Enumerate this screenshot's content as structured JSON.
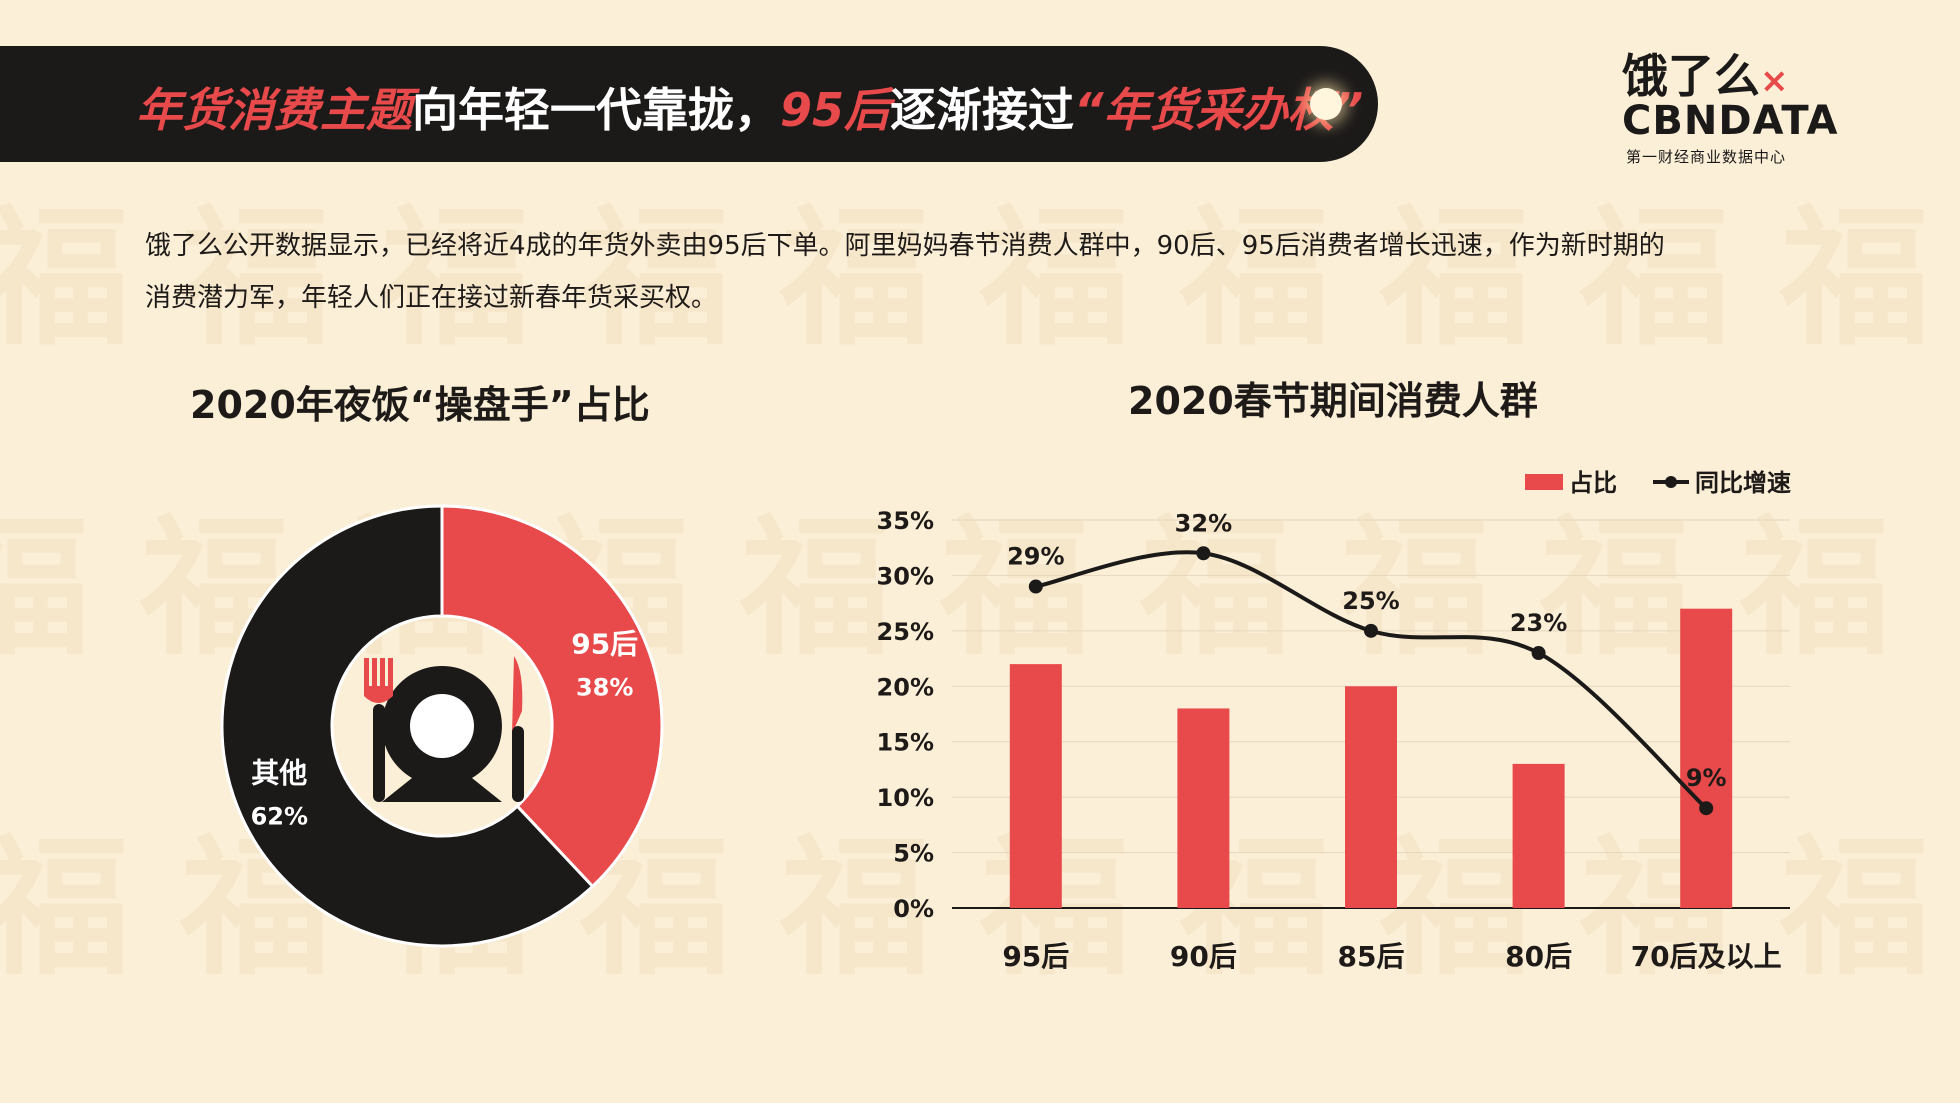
{
  "header": {
    "title_parts": [
      {
        "text": "年货消费主题",
        "highlight": true
      },
      {
        "text": "向年轻一代靠拢，",
        "highlight": false
      },
      {
        "text": "95后",
        "highlight": true
      },
      {
        "text": "逐渐接过",
        "highlight": false
      },
      {
        "text": "“年货采办权”",
        "highlight": true
      }
    ]
  },
  "logo": {
    "brand": "饿了么",
    "brand_mark": "×",
    "partner": "CBNDATA",
    "partner_sub": "第一财经商业数据中心"
  },
  "description": {
    "line1": "饿了么公开数据显示，已经将近4成的年货外卖由95后下单。阿里妈妈春节消费人群中，90后、95后消费者增长迅速，作为新时期的",
    "line2": "消费潜力军，年轻人们正在接过新春年货采买权。"
  },
  "colors": {
    "accent_red": "#e8494a",
    "dark": "#1c1a19",
    "background": "#fbefd8"
  },
  "icons": {
    "center_icon": "plate-fork-knife-icon"
  },
  "chart_data": [
    {
      "type": "pie",
      "variant": "donut",
      "title": "2020年夜饭“操盘手”占比",
      "slices": [
        {
          "label": "95后",
          "value": 38,
          "display": "38%",
          "color": "#e8494a"
        },
        {
          "label": "其他",
          "value": 62,
          "display": "62%",
          "color": "#1c1a19"
        }
      ]
    },
    {
      "type": "bar",
      "title": "2020春节期间消费人群",
      "categories": [
        "95后",
        "90后",
        "85后",
        "80后",
        "70后及以上"
      ],
      "ylim": [
        0,
        35
      ],
      "yticks": [
        "0%",
        "5%",
        "10%",
        "15%",
        "20%",
        "25%",
        "30%",
        "35%"
      ],
      "grid": true,
      "legend_position": "top-right",
      "series": [
        {
          "name": "占比",
          "kind": "bar",
          "color": "#e8494a",
          "values": [
            22,
            18,
            20,
            13,
            27
          ]
        },
        {
          "name": "同比增速",
          "kind": "line",
          "color": "#1c1a19",
          "values": [
            29,
            32,
            25,
            23,
            9
          ],
          "labels": [
            "29%",
            "32%",
            "25%",
            "23%",
            "9%"
          ]
        }
      ]
    }
  ]
}
